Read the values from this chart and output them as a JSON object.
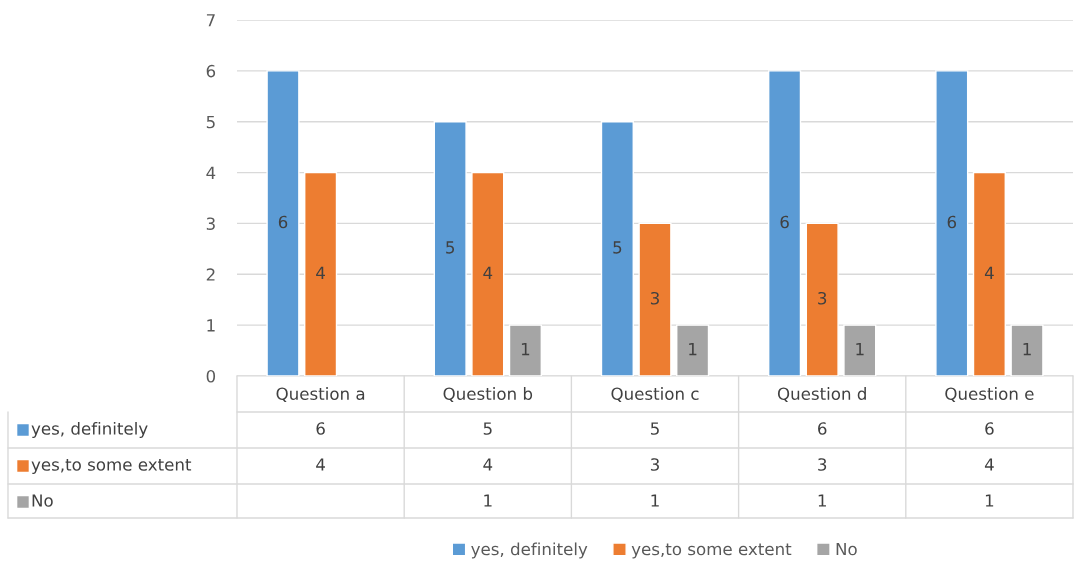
{
  "chart_data": {
    "type": "bar",
    "categories": [
      "Question a",
      "Question b",
      "Question c",
      "Question d",
      "Question e"
    ],
    "series": [
      {
        "name": "yes, definitely",
        "color": "#5b9bd5",
        "values": [
          6,
          5,
          5,
          6,
          6
        ],
        "value_labels": [
          "6",
          "5",
          "5",
          "6",
          "6"
        ]
      },
      {
        "name": "yes,to some extent",
        "color": "#ed7d31",
        "values": [
          4,
          4,
          3,
          3,
          4
        ],
        "value_labels": [
          "4",
          "4",
          "3",
          "3",
          "4"
        ]
      },
      {
        "name": "No",
        "color": "#a5a5a5",
        "values": [
          null,
          1,
          1,
          1,
          1
        ],
        "value_labels": [
          null,
          "1",
          "1",
          "1",
          "1"
        ]
      }
    ],
    "annotations": [
      "6",
      "5",
      "5",
      "6",
      "6",
      "4",
      "4",
      "3",
      "3",
      "4",
      "1",
      "1",
      "1",
      "1"
    ],
    "ylim": [
      0,
      7
    ],
    "yticks": [
      0,
      1,
      2,
      3,
      4,
      5,
      6,
      7
    ],
    "grid": "y",
    "legend": "bottom"
  }
}
